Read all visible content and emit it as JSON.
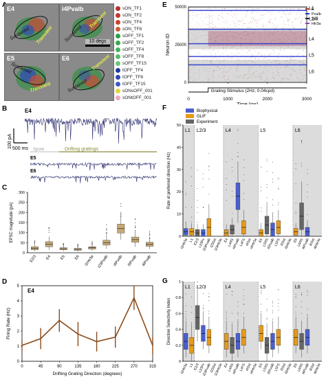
{
  "panel_labels": {
    "A": "A",
    "B": "B",
    "C": "C",
    "D": "D",
    "E": "E",
    "F": "F",
    "G": "G"
  },
  "panel_a": {
    "tiles": [
      {
        "name": "E4",
        "label1": "Sustained",
        "label2": "Transient"
      },
      {
        "name": "i4Pvalb",
        "label1": "Sustained",
        "label2": "Transient"
      },
      {
        "name": "E5",
        "label1": "Sustained",
        "label2": "Transient"
      },
      {
        "name": "E6",
        "label1": "Sustained",
        "label2": "Transient"
      }
    ],
    "scale_label": "10 degs",
    "legend": [
      {
        "label": "sON_TF1",
        "color": "#b4302a"
      },
      {
        "label": "sON_TF2",
        "color": "#c0392b"
      },
      {
        "label": "sON_TF4",
        "color": "#c8452f"
      },
      {
        "label": "sON_TF8",
        "color": "#cf5a3a"
      },
      {
        "label": "sOFF_TF1",
        "color": "#2f9e44"
      },
      {
        "label": "sOFF_TF2",
        "color": "#38a84c"
      },
      {
        "label": "sOFF_TF4",
        "color": "#44b25a"
      },
      {
        "label": "sOFF_TF8",
        "color": "#55bd68"
      },
      {
        "label": "sOFF_TF15",
        "color": "#68c77a"
      },
      {
        "label": "tOFF_TF4",
        "color": "#1f3a99"
      },
      {
        "label": "tOFF_TF8",
        "color": "#2a49b0"
      },
      {
        "label": "tOFF_TF15",
        "color": "#3a5bc4"
      },
      {
        "label": "sONsOFF_001",
        "color": "#e6d23a"
      },
      {
        "label": "sONtOFF_001",
        "color": "#f0a6c4"
      }
    ]
  },
  "panel_b": {
    "title": "E4",
    "scale_y": "100 pA",
    "scale_x": "500 ms",
    "spont_label": "Spont.",
    "drift_label": "Drifting gratings",
    "trace2": "E5",
    "trace3": "E6"
  },
  "chart_data": [
    {
      "id": "C",
      "type": "box",
      "ylabel": "EPSC magnitude (pA)",
      "categories": [
        "E2/3",
        "E4",
        "E5",
        "E6",
        "i1Htr3a",
        "i23Pvalb",
        "i4Pvalb",
        "i5Pvalb",
        "i6Pvalb"
      ],
      "ylim": [
        0,
        300
      ],
      "yticks": [
        0,
        50,
        100,
        150,
        200,
        250,
        300
      ],
      "boxes": [
        {
          "q1": 15,
          "median": 22,
          "q3": 30,
          "wlo": 8,
          "whi": 40
        },
        {
          "q1": 30,
          "median": 42,
          "q3": 55,
          "wlo": 15,
          "whi": 80
        },
        {
          "q1": 15,
          "median": 20,
          "q3": 25,
          "wlo": 8,
          "whi": 32
        },
        {
          "q1": 12,
          "median": 17,
          "q3": 22,
          "wlo": 6,
          "whi": 28
        },
        {
          "q1": 18,
          "median": 25,
          "q3": 30,
          "wlo": 10,
          "whi": 38
        },
        {
          "q1": 38,
          "median": 50,
          "q3": 62,
          "wlo": 20,
          "whi": 88
        },
        {
          "q1": 98,
          "median": 120,
          "q3": 142,
          "wlo": 65,
          "whi": 180
        },
        {
          "q1": 52,
          "median": 65,
          "q3": 78,
          "wlo": 30,
          "whi": 108
        },
        {
          "q1": 32,
          "median": 42,
          "q3": 52,
          "wlo": 18,
          "whi": 70
        }
      ]
    },
    {
      "id": "D",
      "type": "line",
      "title": "E4",
      "xlabel": "Drifting Grating Direction (degrees)",
      "ylabel": "Firing Rate (Hz)",
      "x": [
        0,
        45,
        90,
        135,
        180,
        225,
        270,
        315
      ],
      "y": [
        1.05,
        1.5,
        2.7,
        1.8,
        1.3,
        1.6,
        4.2,
        1.05
      ],
      "err": [
        0.35,
        0.7,
        0.75,
        0.8,
        0.65,
        0.7,
        0.8,
        0.55
      ],
      "xlim": [
        0,
        315
      ],
      "ylim": [
        0,
        5
      ],
      "yticks": [
        0,
        1,
        2,
        3,
        4,
        5
      ]
    },
    {
      "id": "E",
      "type": "raster",
      "xlabel": "Time (ms)",
      "ylabel": "Neuron ID",
      "xlim": [
        0,
        3000
      ],
      "ylim": [
        0,
        50000
      ],
      "xticks": [
        0,
        1000,
        2000,
        3000
      ],
      "yticks": [
        0,
        25000,
        50000
      ],
      "layers": [
        {
          "name": "L1",
          "top": 50000,
          "bottom": 49000
        },
        {
          "name": "L2/3",
          "top": 49000,
          "bottom": 36000
        },
        {
          "name": "L4",
          "top": 36000,
          "bottom": 22000
        },
        {
          "name": "L5",
          "top": 22000,
          "bottom": 15000
        },
        {
          "name": "L6",
          "top": 15000,
          "bottom": 0
        }
      ],
      "legend": [
        {
          "label": "E",
          "color": "#b33a3a"
        },
        {
          "label": "Pvalb",
          "color": "#2233cc"
        },
        {
          "label": "Sst",
          "color": "#222222"
        },
        {
          "label": "Htr3a",
          "color": "#8e44ad"
        }
      ],
      "stim_label": "Grating Stimulus (2Hz, 0.04cpd)",
      "stim_on": 500,
      "stim_off": 3000
    },
    {
      "id": "F",
      "type": "box",
      "ylabel": "Rate at preferred direction (Hz)",
      "ylim": [
        0,
        50
      ],
      "yticks": [
        0,
        10,
        20,
        30,
        40,
        50
      ],
      "legend": [
        {
          "label": "Biophysical",
          "color": "#4a5fd0"
        },
        {
          "label": "GLIF",
          "color": "#e69a1a"
        },
        {
          "label": "Experiment",
          "color": "#666666"
        }
      ],
      "categories": [
        "i1Htr3a",
        "L1",
        "E2/3",
        "L23Pv",
        "i23Pvalb",
        "i23Sst",
        "i23Htr3a",
        "E4",
        "L4RS",
        "i4Pvalb",
        "L4FS",
        "i4Sst",
        "i4Htr3a",
        "E5",
        "L5RS",
        "i5Pvalb",
        "L5FS",
        "i5Sst",
        "i5Htr3a",
        "E6",
        "L6RS",
        "i6Pvalb",
        "i6Sst",
        "i6Htr3a"
      ],
      "layer_labels": [
        "L1",
        "L2/3",
        "L4",
        "L5",
        "L6"
      ]
    },
    {
      "id": "G",
      "type": "box",
      "ylabel": "Direction Selectivity Index",
      "ylim": [
        0,
        1
      ],
      "yticks": [
        0,
        0.2,
        0.4,
        0.6,
        0.8,
        1.0
      ],
      "categories": [
        "i1Htr3a",
        "L1",
        "E2/3",
        "L23Pv",
        "i23Pvalb",
        "i23Sst",
        "i23Htr3a",
        "E4",
        "L4RS",
        "i4Pvalb",
        "L4FS",
        "i4Sst",
        "i4Htr3a",
        "E5",
        "L5RS",
        "i5Pvalb",
        "L5FS",
        "i5Sst",
        "i5Htr3a",
        "E6",
        "L6RS",
        "i6Pvalb",
        "i6Sst",
        "i6Htr3a"
      ],
      "layer_labels": [
        "L1",
        "L2/3",
        "L4",
        "L5",
        "L6"
      ]
    }
  ]
}
